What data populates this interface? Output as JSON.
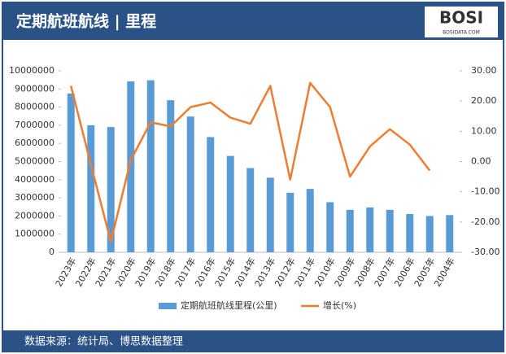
{
  "chart_data": {
    "type": "bar_line",
    "title": "定期航班航线 | 里程",
    "logo": "BOSI",
    "logo_sub": "BOSIDATA.COM",
    "source": "数据来源：统计局、博思数据整理",
    "categories": [
      "2023年",
      "2022年",
      "2021年",
      "2020年",
      "2019年",
      "2018年",
      "2017年",
      "2016年",
      "2015年",
      "2014年",
      "2013年",
      "2012年",
      "2011年",
      "2010年",
      "2009年",
      "2008年",
      "2007年",
      "2006年",
      "2005年",
      "2004年"
    ],
    "series": [
      {
        "name": "定期航班航线里程(公里)",
        "type": "bar",
        "color": "#5b9bd5",
        "values": [
          8750000,
          7000000,
          6900000,
          9420000,
          9480000,
          8380000,
          7480000,
          6350000,
          5310000,
          4640000,
          4110000,
          3280000,
          3490000,
          2760000,
          2340000,
          2470000,
          2340000,
          2110000,
          2000000,
          2050000
        ]
      },
      {
        "name": "增长(%)",
        "type": "line",
        "axis": "y2",
        "color": "#ed7d31",
        "values": [
          25,
          -1,
          -26.5,
          0.5,
          13,
          11.6,
          18,
          19.5,
          14.5,
          12.5,
          25,
          -6,
          26,
          18,
          -5,
          5,
          10.7,
          5.6,
          -3,
          null
        ]
      }
    ],
    "ylim": [
      0,
      10000000
    ],
    "yticks": [
      0,
      1000000,
      2000000,
      3000000,
      4000000,
      5000000,
      6000000,
      7000000,
      8000000,
      9000000,
      10000000
    ],
    "y2lim": [
      -30,
      30
    ],
    "y2ticks": [
      {
        "value": 30,
        "label": "30.00"
      },
      {
        "value": 20,
        "label": "20.00"
      },
      {
        "value": 10,
        "label": "10.00"
      },
      {
        "value": 0,
        "label": "0.00"
      },
      {
        "value": -10,
        "label": "-10.00"
      },
      {
        "value": -20,
        "label": "-20.00"
      },
      {
        "value": -30,
        "label": "-30.00"
      }
    ],
    "legend": "bottom"
  }
}
